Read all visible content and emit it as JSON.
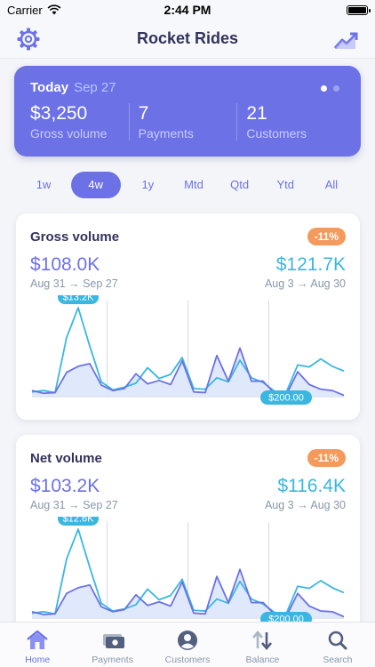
{
  "status_bar": {
    "carrier": "Carrier",
    "time": "2:44 PM"
  },
  "nav": {
    "title": "Rocket Rides",
    "left_icon": "gear-icon",
    "right_icon": "chart-trend-icon"
  },
  "hero": {
    "today_label": "Today",
    "date": "Sep 27",
    "stats": [
      {
        "value": "$3,250",
        "label": "Gross volume"
      },
      {
        "value": "7",
        "label": "Payments"
      },
      {
        "value": "21",
        "label": "Customers"
      }
    ],
    "page_count": 2,
    "active_page": 0
  },
  "ranges": {
    "items": [
      "1w",
      "4w",
      "1y",
      "Mtd",
      "Qtd",
      "Ytd",
      "All"
    ],
    "active": "4w"
  },
  "cards": [
    {
      "title": "Gross volume",
      "badge": "-11%",
      "current_value": "$108.0K",
      "current_range": "Aug 31 → Sep 27",
      "previous_value": "$121.7K",
      "previous_range": "Aug 3 → Aug 30",
      "max_label": "$13.2K",
      "min_label": "$200.00"
    },
    {
      "title": "Net volume",
      "badge": "-11%",
      "current_value": "$103.2K",
      "current_range": "Aug 31 → Sep 27",
      "previous_value": "$116.4K",
      "previous_range": "Aug 3 → Aug 30",
      "max_label": "$12.6K",
      "min_label": "$200.00"
    }
  ],
  "chart_data": [
    {
      "type": "area",
      "title": "Gross volume",
      "x": [
        1,
        2,
        3,
        4,
        5,
        6,
        7,
        8,
        9,
        10,
        11,
        12,
        13,
        14,
        15,
        16,
        17,
        18,
        19,
        20,
        21,
        22,
        23,
        24,
        25,
        26,
        27,
        28
      ],
      "series": [
        {
          "name": "Aug 31 → Sep 27",
          "values": [
            0.9,
            0.5,
            0.6,
            3.6,
            4.5,
            4.9,
            1.7,
            0.9,
            1.2,
            3.4,
            1.9,
            2.4,
            1.8,
            5.3,
            0.7,
            0.6,
            6.1,
            2.3,
            7.2,
            2.3,
            2.3,
            0.5,
            0.2,
            3.7,
            1.8,
            1.1,
            0.9,
            0.2
          ]
        },
        {
          "name": "Aug 3 → Aug 30",
          "values": [
            0.7,
            0.9,
            0.6,
            8.8,
            13.2,
            7.5,
            2.2,
            1.0,
            1.4,
            2.0,
            4.3,
            2.7,
            3.3,
            5.8,
            1.2,
            1.1,
            2.8,
            2.2,
            5.4,
            2.8,
            2.1,
            0.8,
            0.6,
            4.7,
            4.4,
            5.6,
            4.5,
            3.8
          ]
        }
      ],
      "ylim": [
        0,
        13.2
      ],
      "units": "$K"
    },
    {
      "type": "area",
      "title": "Net volume",
      "x": [
        1,
        2,
        3,
        4,
        5,
        6,
        7,
        8,
        9,
        10,
        11,
        12,
        13,
        14,
        15,
        16,
        17,
        18,
        19,
        20,
        21,
        22,
        23,
        24,
        25,
        26,
        27,
        28
      ],
      "series": [
        {
          "name": "Aug 31 → Sep 27",
          "values": [
            0.9,
            0.5,
            0.6,
            3.5,
            4.3,
            4.7,
            1.6,
            0.9,
            1.2,
            3.3,
            1.8,
            2.3,
            1.7,
            5.1,
            0.7,
            0.6,
            5.9,
            2.2,
            6.9,
            2.2,
            2.2,
            0.5,
            0.2,
            3.5,
            1.7,
            1.0,
            0.9,
            0.2
          ]
        },
        {
          "name": "Aug 3 → Aug 30",
          "values": [
            0.7,
            0.9,
            0.6,
            8.4,
            12.6,
            7.2,
            2.1,
            1.0,
            1.3,
            1.9,
            4.1,
            2.6,
            3.2,
            5.5,
            1.1,
            1.0,
            2.7,
            2.1,
            5.2,
            2.7,
            2.0,
            0.8,
            0.6,
            4.5,
            4.2,
            5.3,
            4.3,
            3.6
          ]
        }
      ],
      "ylim": [
        0,
        12.6
      ],
      "units": "$K"
    }
  ],
  "tabs": [
    {
      "label": "Home",
      "icon": "home-icon",
      "active": true
    },
    {
      "label": "Payments",
      "icon": "payments-icon",
      "active": false
    },
    {
      "label": "Customers",
      "icon": "customer-icon",
      "active": false
    },
    {
      "label": "Balance",
      "icon": "balance-arrows-icon",
      "active": false
    },
    {
      "label": "Search",
      "icon": "search-icon",
      "active": false
    }
  ],
  "colors": {
    "accent": "#6c71e6",
    "previous_series": "#3ab7e0",
    "badge": "#f49a5d",
    "area_fill": "#dbe7fb"
  }
}
